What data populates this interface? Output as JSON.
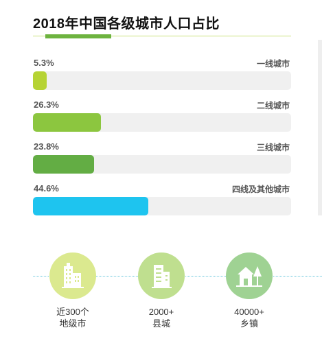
{
  "chart_data": {
    "type": "bar",
    "orientation": "horizontal",
    "title": "2018年中国各级城市人口占比",
    "categories": [
      "一线城市",
      "二线城市",
      "三线城市",
      "四线及其他城市"
    ],
    "values": [
      5.3,
      26.3,
      23.8,
      44.6
    ],
    "value_labels": [
      "5.3%",
      "26.3%",
      "23.8%",
      "44.6%"
    ],
    "xlim": [
      0,
      100
    ],
    "colors": [
      "#b6d334",
      "#8cc63f",
      "#63ad44",
      "#1ec4ef"
    ],
    "grid": false
  },
  "stats": [
    {
      "number": "近300个",
      "unit": "地级市",
      "icon": "office-building-icon",
      "color": "#dbe98f"
    },
    {
      "number": "2000+",
      "unit": "县城",
      "icon": "building-icon",
      "color": "#bfdf8f"
    },
    {
      "number": "40000+",
      "unit": "乡镇",
      "icon": "house-tree-icon",
      "color": "#9fd293"
    }
  ]
}
